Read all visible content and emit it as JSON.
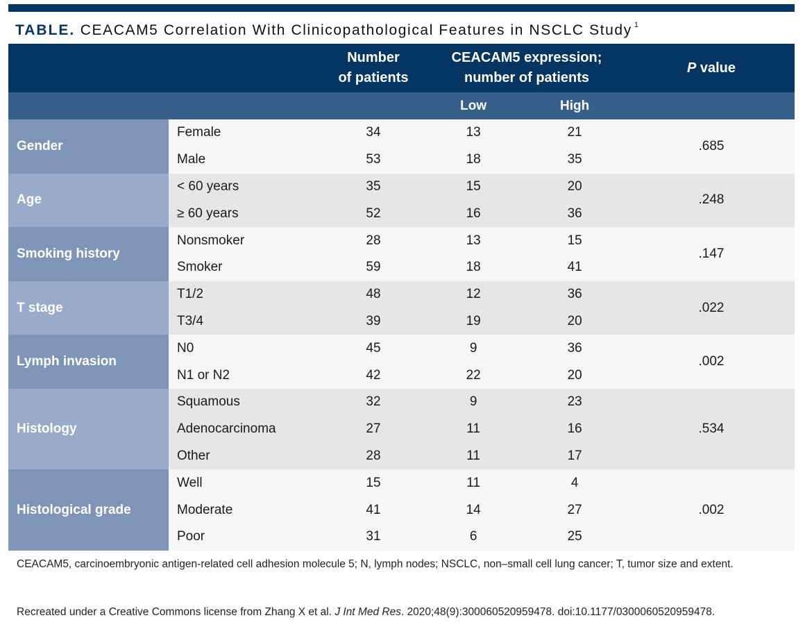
{
  "title": {
    "label": "TABLE.",
    "text": "CEACAM5 Correlation With Clinicopathological Features in NSCLC Study",
    "ref": "1"
  },
  "header": {
    "patients_l1": "Number",
    "patients_l2": "of patients",
    "expr_l1": "CEACAM5 expression;",
    "expr_l2": "number of patients",
    "p_italic": "P",
    "p_rest": " value",
    "low": "Low",
    "high": "High"
  },
  "groups": [
    {
      "label": "Gender",
      "p": ".685",
      "rows": [
        [
          "Female",
          "34",
          "13",
          "21"
        ],
        [
          "Male",
          "53",
          "18",
          "35"
        ]
      ]
    },
    {
      "label": "Age",
      "p": ".248",
      "rows": [
        [
          "< 60 years",
          "35",
          "15",
          "20"
        ],
        [
          "≥ 60 years",
          "52",
          "16",
          "36"
        ]
      ]
    },
    {
      "label": "Smoking history",
      "p": ".147",
      "rows": [
        [
          "Nonsmoker",
          "28",
          "13",
          "15"
        ],
        [
          "Smoker",
          "59",
          "18",
          "41"
        ]
      ]
    },
    {
      "label": "T stage",
      "p": ".022",
      "rows": [
        [
          "T1/2",
          "48",
          "12",
          "36"
        ],
        [
          "T3/4",
          "39",
          "19",
          "20"
        ]
      ]
    },
    {
      "label": "Lymph invasion",
      "p": ".002",
      "rows": [
        [
          "N0",
          "45",
          "9",
          "36"
        ],
        [
          "N1 or N2",
          "42",
          "22",
          "20"
        ]
      ]
    },
    {
      "label": "Histology",
      "p": ".534",
      "rows": [
        [
          "Squamous",
          "32",
          "9",
          "23"
        ],
        [
          "Adenocarcinoma",
          "27",
          "11",
          "16"
        ],
        [
          "Other",
          "28",
          "11",
          "17"
        ]
      ]
    },
    {
      "label": "Histological grade",
      "p": ".002",
      "rows": [
        [
          "Well",
          "15",
          "11",
          "4"
        ],
        [
          "Moderate",
          "41",
          "14",
          "27"
        ],
        [
          "Poor",
          "31",
          "6",
          "25"
        ]
      ]
    }
  ],
  "footnote": {
    "abbrev": "CEACAM5, carcinoembryonic antigen-related cell adhesion molecule 5; N, lymph nodes; NSCLC, non–small cell lung cancer; T, tumor size and extent.",
    "source_pre": "Recreated under a Creative Commons license from Zhang X et al. ",
    "source_journal": "J Int Med Res",
    "source_post": ". 2020;48(9):300060520959478. doi:10.1177/0300060520959478."
  },
  "colors": {
    "navy": "#053563",
    "subheader": "#365f8a"
  }
}
